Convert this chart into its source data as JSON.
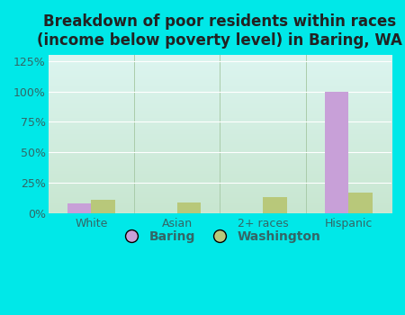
{
  "title": "Breakdown of poor residents within races\n(income below poverty level) in Baring, WA",
  "categories": [
    "White",
    "Asian",
    "2+ races",
    "Hispanic"
  ],
  "baring_values": [
    8,
    0,
    0,
    100
  ],
  "washington_values": [
    11,
    9,
    13,
    17
  ],
  "baring_color": "#c8a0d8",
  "washington_color": "#b8c87a",
  "background_outer": "#00e8e8",
  "ylim": [
    0,
    130
  ],
  "yticks": [
    0,
    25,
    50,
    75,
    100,
    125
  ],
  "ytick_labels": [
    "0%",
    "25%",
    "50%",
    "75%",
    "100%",
    "125%"
  ],
  "title_fontsize": 12,
  "legend_labels": [
    "Baring",
    "Washington"
  ],
  "grad_top": "#e0f5f0",
  "grad_bottom": "#d0ecd8"
}
